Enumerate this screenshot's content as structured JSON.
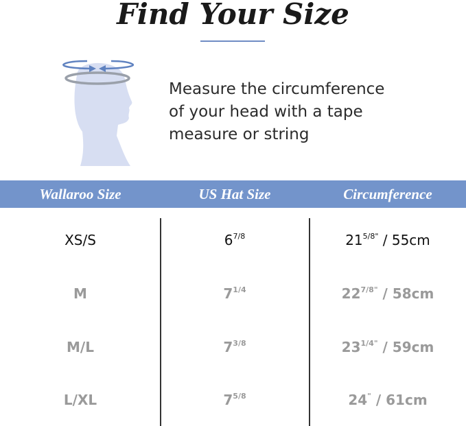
{
  "title": "Find Your Size",
  "instruction": [
    "Measure the circumference",
    "of your head with a tape",
    "measure or string"
  ],
  "accent_color": "#7394cb",
  "illustration": "head-measurement-icon",
  "table": {
    "headers": [
      "Wallaroo Size",
      "US Hat Size",
      "Circumference"
    ],
    "rows": [
      {
        "size": "XS/S",
        "hat_whole": "6",
        "hat_frac": "7/8",
        "circ_whole": "21",
        "circ_frac": "5/8\"",
        "circ_cm": " / 55cm"
      },
      {
        "size": "M",
        "hat_whole": "7",
        "hat_frac": "1/4",
        "circ_whole": "22",
        "circ_frac": "7/8\"",
        "circ_cm": " / 58cm"
      },
      {
        "size": "M/L",
        "hat_whole": "7",
        "hat_frac": "3/8",
        "circ_whole": "23",
        "circ_frac": "1/4\"",
        "circ_cm": " / 59cm"
      },
      {
        "size": "L/XL",
        "hat_whole": "7",
        "hat_frac": "5/8",
        "circ_whole": "24",
        "circ_frac": "\"",
        "circ_cm": " / 61cm"
      }
    ]
  }
}
